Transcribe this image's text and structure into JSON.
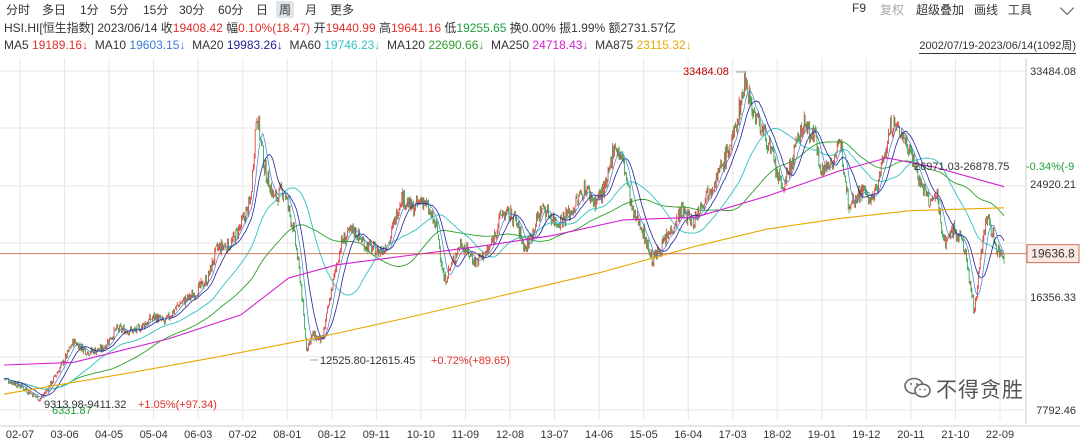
{
  "toolbar": {
    "periods": [
      "分时",
      "多日",
      "1分",
      "5分",
      "15分",
      "30分",
      "60分",
      "日",
      "周",
      "月",
      "更多"
    ],
    "active": "周",
    "right": [
      "F9",
      "复权",
      "超级叠加",
      "画线",
      "工具"
    ]
  },
  "info": {
    "symbol": "HSI.HI[恒生指数]",
    "date": "2023/06/14",
    "close_label": "收",
    "close": "19408.42",
    "change_label": "幅",
    "change_pct": "0.10%",
    "change_abs": "(18.47)",
    "open_label": "开",
    "open": "19440.99",
    "high_label": "高",
    "high": "19641.16",
    "low_label": "低",
    "low": "19255.65",
    "turnover_label": "换",
    "turnover": "0.00%",
    "amplitude_label": "振",
    "amplitude": "1.99%",
    "amount_label": "额",
    "amount": "2731.57亿"
  },
  "ma": [
    {
      "label": "MA5",
      "value": "19189.16↓",
      "color": "#e0302c"
    },
    {
      "label": "MA10",
      "value": "19603.15↓",
      "color": "#3a7bd5"
    },
    {
      "label": "MA20",
      "value": "19983.26↓",
      "color": "#222299"
    },
    {
      "label": "MA60",
      "value": "19746.23↓",
      "color": "#30c0c0"
    },
    {
      "label": "MA120",
      "value": "22690.66↓",
      "color": "#2aa02a"
    },
    {
      "label": "MA250",
      "value": "24718.43↓",
      "color": "#d020d0"
    },
    {
      "label": "MA875",
      "value": "23115.32↓",
      "color": "#e8a800"
    }
  ],
  "range": "2002/07/19-2023/06/14(1092周)",
  "colors": {
    "up": "#e0302c",
    "down": "#1f9d3a",
    "grid": "#e6e6e6",
    "price_line": "#c0502a"
  },
  "chart_data": {
    "type": "candlestick",
    "y_ticks": [
      "33484.08",
      "24920.21",
      "16356.33",
      "7792.46"
    ],
    "y_ticks_values": [
      33484.08,
      24920.21,
      16356.33,
      7792.46
    ],
    "x_ticks": [
      "02-07",
      "03-06",
      "04-05",
      "05-04",
      "06-03",
      "07-02",
      "08-01",
      "08-12",
      "09-11",
      "10-10",
      "11-09",
      "12-08",
      "13-07",
      "14-06",
      "15-05",
      "16-04",
      "17-03",
      "18-02",
      "19-01",
      "19-12",
      "20-11",
      "21-10",
      "22-09"
    ],
    "current_price": "19636.8",
    "current_price_value": 19636.8,
    "annotations": {
      "max": "33484.08",
      "min": "6331.87",
      "range1": "12525.80-12615.45",
      "range1_pct": "+0.72%(+89.65)",
      "range2": "9313.98-9411.32",
      "range2_pct": "+1.05%(+97.34)",
      "range3": "26971.03-26878.75",
      "range3_pct": "-0.34%(-9"
    },
    "close_series": [
      [
        2002.55,
        10200
      ],
      [
        2002.9,
        9600
      ],
      [
        2003.3,
        8600
      ],
      [
        2003.5,
        9600
      ],
      [
        2003.8,
        11500
      ],
      [
        2004.0,
        13000
      ],
      [
        2004.3,
        12200
      ],
      [
        2004.6,
        12400
      ],
      [
        2004.9,
        13900
      ],
      [
        2005.3,
        13800
      ],
      [
        2005.7,
        14900
      ],
      [
        2005.9,
        14400
      ],
      [
        2006.2,
        15800
      ],
      [
        2006.5,
        16500
      ],
      [
        2006.8,
        17700
      ],
      [
        2007.0,
        20000
      ],
      [
        2007.3,
        20400
      ],
      [
        2007.5,
        21800
      ],
      [
        2007.7,
        23500
      ],
      [
        2007.83,
        30500
      ],
      [
        2008.0,
        26000
      ],
      [
        2008.2,
        23800
      ],
      [
        2008.4,
        24500
      ],
      [
        2008.6,
        21500
      ],
      [
        2008.75,
        17500
      ],
      [
        2008.87,
        12500
      ],
      [
        2009.0,
        13500
      ],
      [
        2009.2,
        13000
      ],
      [
        2009.4,
        17000
      ],
      [
        2009.6,
        20500
      ],
      [
        2009.85,
        21500
      ],
      [
        2010.1,
        20300
      ],
      [
        2010.4,
        19800
      ],
      [
        2010.6,
        20500
      ],
      [
        2010.85,
        24000
      ],
      [
        2011.1,
        23000
      ],
      [
        2011.3,
        23800
      ],
      [
        2011.6,
        21500
      ],
      [
        2011.75,
        17500
      ],
      [
        2011.9,
        18800
      ],
      [
        2012.1,
        20500
      ],
      [
        2012.4,
        19000
      ],
      [
        2012.7,
        20000
      ],
      [
        2012.95,
        22700
      ],
      [
        2013.2,
        22500
      ],
      [
        2013.45,
        20000
      ],
      [
        2013.8,
        23200
      ],
      [
        2014.1,
        22000
      ],
      [
        2014.4,
        22800
      ],
      [
        2014.7,
        24700
      ],
      [
        2014.9,
        23500
      ],
      [
        2015.15,
        24800
      ],
      [
        2015.3,
        28000
      ],
      [
        2015.5,
        26500
      ],
      [
        2015.7,
        22500
      ],
      [
        2015.85,
        22000
      ],
      [
        2016.1,
        19100
      ],
      [
        2016.4,
        20800
      ],
      [
        2016.7,
        23000
      ],
      [
        2016.95,
        22000
      ],
      [
        2017.2,
        24000
      ],
      [
        2017.5,
        25800
      ],
      [
        2017.8,
        28500
      ],
      [
        2018.05,
        32900
      ],
      [
        2018.2,
        30500
      ],
      [
        2018.5,
        28300
      ],
      [
        2018.8,
        24500
      ],
      [
        2018.95,
        25800
      ],
      [
        2019.25,
        29500
      ],
      [
        2019.5,
        28500
      ],
      [
        2019.65,
        25800
      ],
      [
        2019.9,
        27000
      ],
      [
        2020.05,
        27900
      ],
      [
        2020.2,
        23500
      ],
      [
        2020.5,
        24500
      ],
      [
        2020.7,
        23500
      ],
      [
        2020.9,
        26300
      ],
      [
        2021.1,
        29500
      ],
      [
        2021.3,
        28800
      ],
      [
        2021.5,
        27500
      ],
      [
        2021.7,
        25000
      ],
      [
        2021.9,
        23500
      ],
      [
        2022.05,
        24000
      ],
      [
        2022.2,
        20500
      ],
      [
        2022.4,
        21500
      ],
      [
        2022.6,
        20500
      ],
      [
        2022.8,
        16000
      ],
      [
        2022.83,
        15000
      ],
      [
        2022.95,
        19500
      ],
      [
        2023.1,
        22500
      ],
      [
        2023.3,
        20000
      ],
      [
        2023.45,
        19408
      ]
    ],
    "ma_lines": {
      "MA875": [
        [
          2002.55,
          9000
        ],
        [
          2005,
          10500
        ],
        [
          2007,
          11800
        ],
        [
          2009,
          13200
        ],
        [
          2011,
          14800
        ],
        [
          2013,
          16500
        ],
        [
          2015,
          18200
        ],
        [
          2017,
          20200
        ],
        [
          2018.5,
          21500
        ],
        [
          2020,
          22300
        ],
        [
          2021.5,
          22900
        ],
        [
          2023.45,
          23115
        ]
      ],
      "MA250": [
        [
          2002.55,
          11200
        ],
        [
          2004,
          11400
        ],
        [
          2006,
          13200
        ],
        [
          2007.5,
          15000
        ],
        [
          2008.5,
          17800
        ],
        [
          2009.5,
          18800
        ],
        [
          2011,
          19500
        ],
        [
          2012.5,
          20200
        ],
        [
          2014,
          21000
        ],
        [
          2015.5,
          22200
        ],
        [
          2017,
          22400
        ],
        [
          2018.5,
          24000
        ],
        [
          2020,
          25900
        ],
        [
          2021,
          26900
        ],
        [
          2022,
          26200
        ],
        [
          2023.45,
          24718
        ]
      ]
    }
  }
}
